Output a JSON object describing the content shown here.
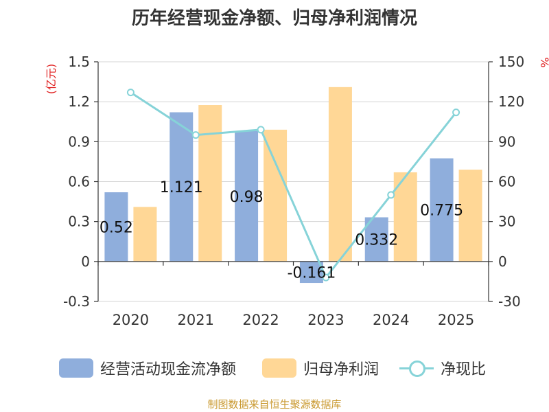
{
  "title": "历年经营现金净额、归母净利润情况",
  "source": "制图数据来自恒生聚源数据库",
  "colors": {
    "cash_flow": "#8FAEDC",
    "net_profit": "#FFD796",
    "ratio": "#86D3D8",
    "left_unit": "#E02020",
    "source": "#C9982E"
  },
  "chart_data": {
    "type": "bar",
    "categories": [
      "2020",
      "2021",
      "2022",
      "2023",
      "2024",
      "2025"
    ],
    "series": [
      {
        "name": "经营活动现金流净额",
        "type": "bar",
        "axis": "left",
        "values": [
          0.52,
          1.121,
          0.98,
          -0.161,
          0.332,
          0.775
        ],
        "labels": [
          "0.52",
          "1.121",
          "0.98",
          "-0.161",
          "0.332",
          "0.775"
        ]
      },
      {
        "name": "归母净利润",
        "type": "bar",
        "axis": "left",
        "values": [
          0.41,
          1.175,
          0.99,
          1.31,
          0.67,
          0.69
        ]
      },
      {
        "name": "净现比",
        "type": "line",
        "axis": "right",
        "values": [
          127,
          95,
          99,
          -12,
          50,
          112
        ]
      }
    ],
    "y_left": {
      "label": "(亿元)",
      "ylim": [
        -0.3,
        1.5
      ],
      "ticks": [
        "-0.3",
        "0",
        "0.3",
        "0.6",
        "0.9",
        "1.2",
        "1.5"
      ]
    },
    "y_right": {
      "label": "%",
      "ylim": [
        -30,
        150
      ],
      "ticks": [
        "-30",
        "0",
        "30",
        "60",
        "90",
        "120",
        "150"
      ]
    },
    "grid": true,
    "legend_position": "bottom"
  }
}
